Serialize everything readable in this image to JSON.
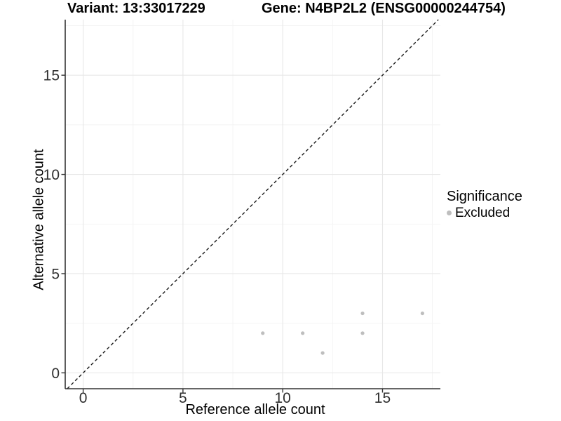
{
  "header": {
    "variant_title": "Variant: 13:33017229",
    "gene_title": "Gene: N4BP2L2 (ENSG00000244754)"
  },
  "legend": {
    "title": "Significance",
    "items": [
      {
        "label": "Excluded",
        "color": "#bebebe"
      }
    ]
  },
  "chart_data": {
    "type": "scatter",
    "title": "Variant: 13:33017229 / Gene: N4BP2L2 (ENSG00000244754)",
    "xlabel": "Reference allele count",
    "ylabel": "Alternative allele count",
    "xlim": [
      -0.9,
      17.9
    ],
    "ylim": [
      -0.8,
      17.8
    ],
    "x_ticks": [
      0,
      5,
      10,
      15
    ],
    "y_ticks": [
      0,
      5,
      10,
      15
    ],
    "x_minor_ticks": [
      2.5,
      7.5,
      12.5,
      17.5
    ],
    "y_minor_ticks": [
      2.5,
      7.5,
      12.5,
      17.5
    ],
    "grid": "major and minor gridlines on white background",
    "legend_position": "right",
    "identity_line": {
      "style": "dashed",
      "equation": "y = x",
      "color": "#1a1a1a"
    },
    "series": [
      {
        "name": "Excluded",
        "color": "#bebebe",
        "points": [
          [
            9,
            2
          ],
          [
            11,
            2
          ],
          [
            12,
            1
          ],
          [
            14,
            2
          ],
          [
            14,
            3
          ],
          [
            17,
            3
          ]
        ]
      }
    ]
  },
  "colors": {
    "background": "#ffffff",
    "point": "#bebebe",
    "grid_major": "#e7e7e7",
    "grid_minor": "#f3f3f3",
    "axis_line": "#343434",
    "tick_label": "#303030",
    "identity_line": "#1a1a1a"
  }
}
